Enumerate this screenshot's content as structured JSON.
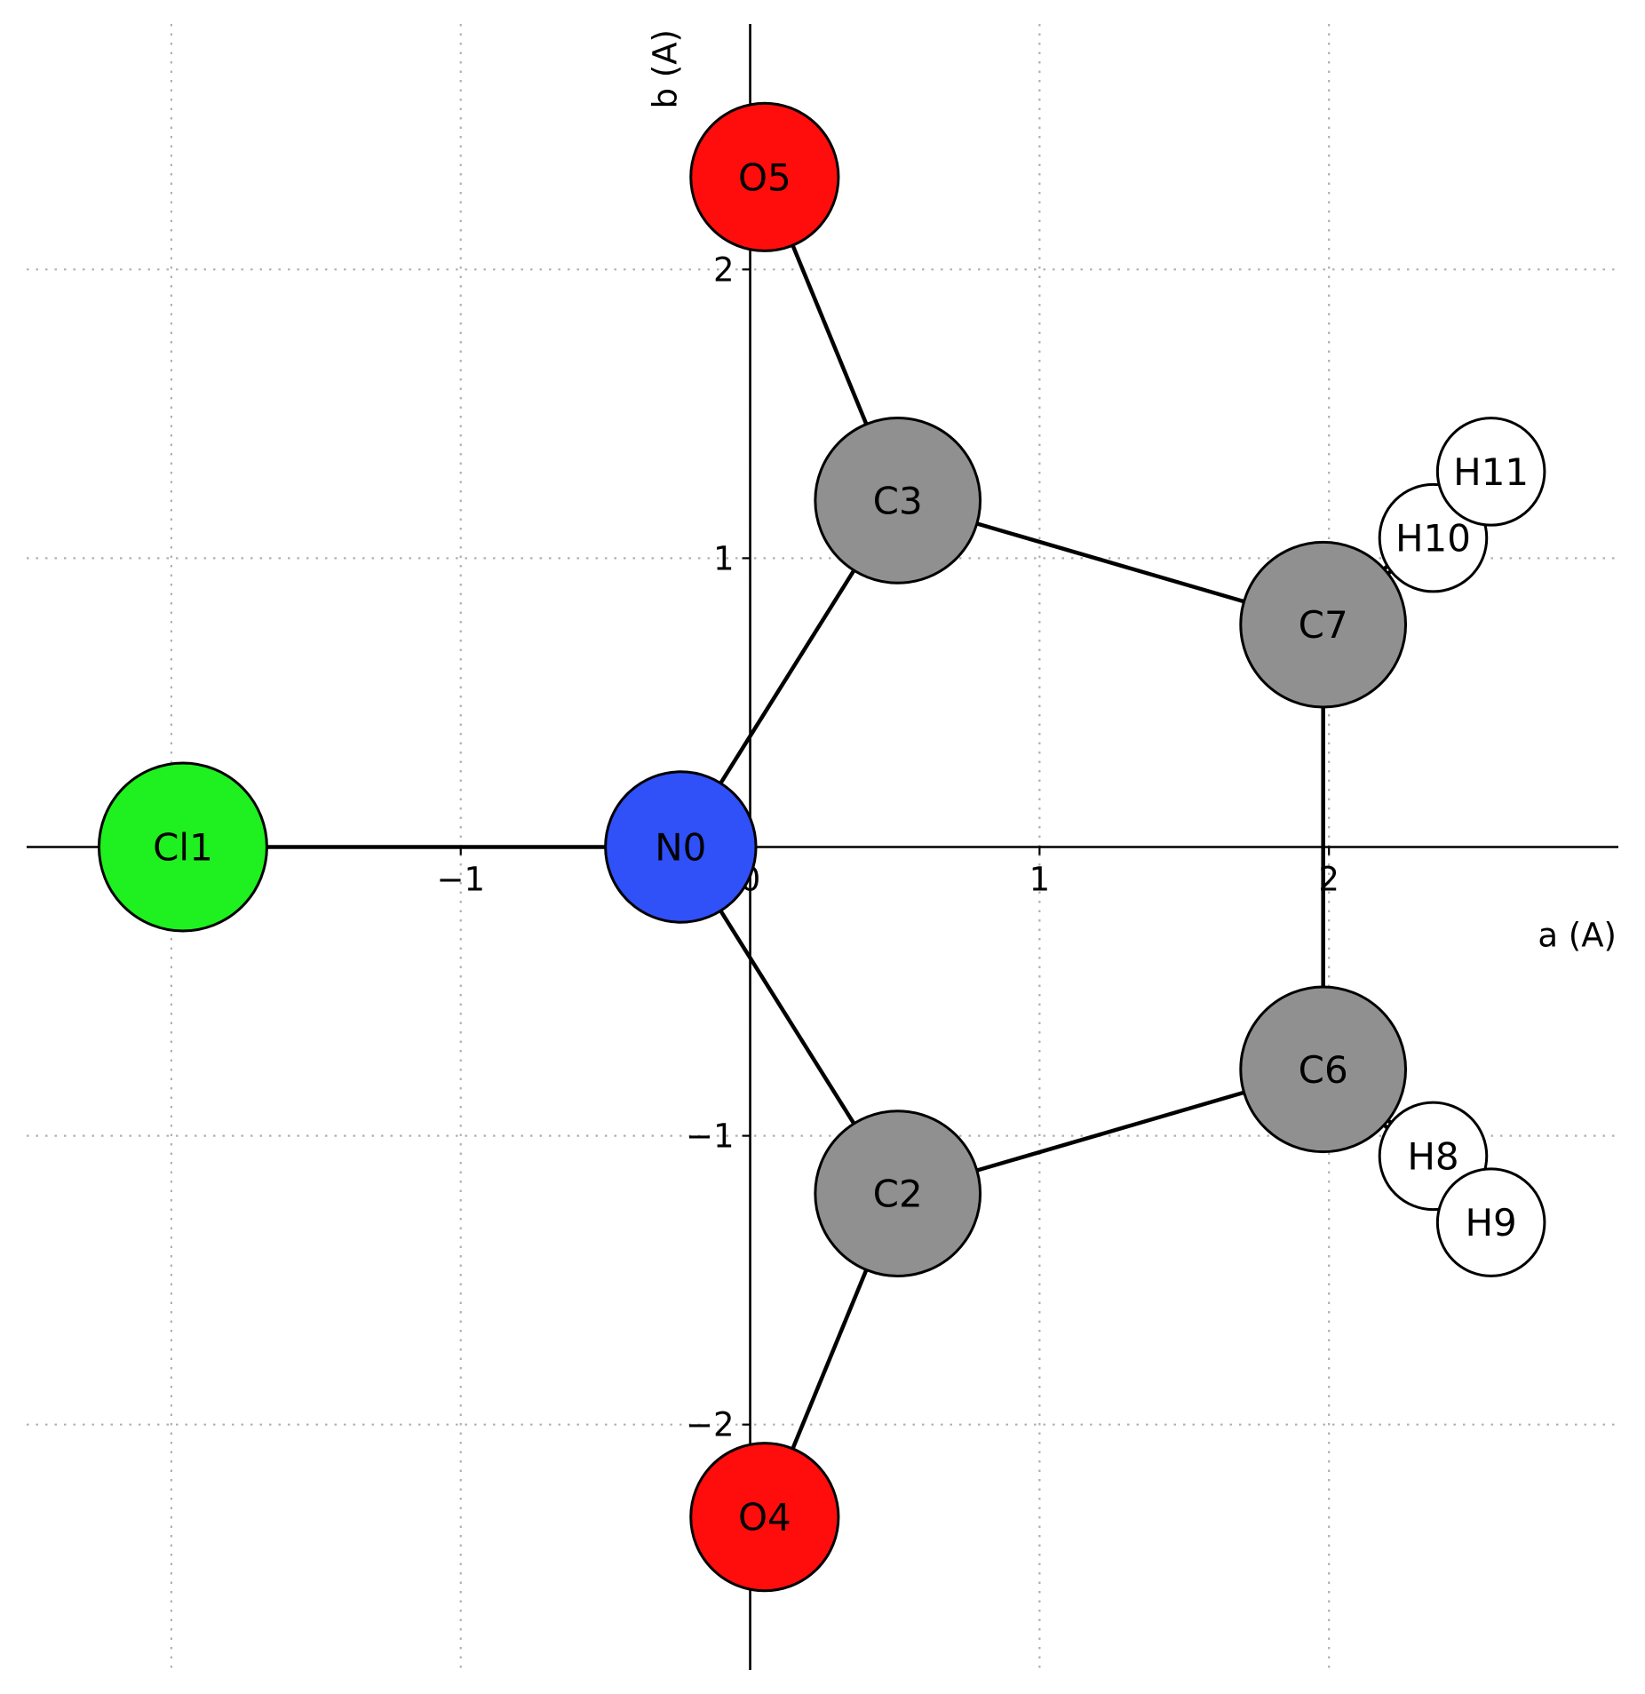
{
  "chart_data": {
    "type": "scatter",
    "title": "",
    "xlabel": "a (A)",
    "ylabel": "b (A)",
    "xlim": [
      -2.5,
      3.0
    ],
    "ylim": [
      -2.85,
      2.85
    ],
    "grid": true,
    "spines": "centered",
    "xticks": [
      {
        "value": -1,
        "label": "−1"
      },
      {
        "value": 0,
        "label": "0"
      },
      {
        "value": 1,
        "label": "1"
      },
      {
        "value": 2,
        "label": "2"
      }
    ],
    "yticks": [
      {
        "value": -2,
        "label": "−2"
      },
      {
        "value": -1,
        "label": "−1"
      },
      {
        "value": 1,
        "label": "1"
      },
      {
        "value": 2,
        "label": "2"
      }
    ],
    "atoms": [
      {
        "label": "N0",
        "element": "N",
        "x": -0.24,
        "y": 0.0,
        "color": "#3050f8",
        "radius": 0.26
      },
      {
        "label": "Cl1",
        "element": "Cl",
        "x": -1.96,
        "y": 0.0,
        "color": "#1ff01f",
        "radius": 0.29
      },
      {
        "label": "C2",
        "element": "C",
        "x": 0.51,
        "y": -1.2,
        "color": "#909090",
        "radius": 0.285
      },
      {
        "label": "C3",
        "element": "C",
        "x": 0.51,
        "y": 1.2,
        "color": "#909090",
        "radius": 0.285
      },
      {
        "label": "O4",
        "element": "O",
        "x": 0.05,
        "y": -2.32,
        "color": "#ff0d0d",
        "radius": 0.255
      },
      {
        "label": "O5",
        "element": "O",
        "x": 0.05,
        "y": 2.32,
        "color": "#ff0d0d",
        "radius": 0.255
      },
      {
        "label": "C6",
        "element": "C",
        "x": 1.98,
        "y": -0.77,
        "color": "#909090",
        "radius": 0.285
      },
      {
        "label": "C7",
        "element": "C",
        "x": 1.98,
        "y": 0.77,
        "color": "#909090",
        "radius": 0.285
      },
      {
        "label": "H8",
        "element": "H",
        "x": 2.36,
        "y": -1.07,
        "color": "#ffffff",
        "radius": 0.185
      },
      {
        "label": "H9",
        "element": "H",
        "x": 2.56,
        "y": -1.3,
        "color": "#ffffff",
        "radius": 0.185
      },
      {
        "label": "H10",
        "element": "H",
        "x": 2.36,
        "y": 1.07,
        "color": "#ffffff",
        "radius": 0.185
      },
      {
        "label": "H11",
        "element": "H",
        "x": 2.56,
        "y": 1.3,
        "color": "#ffffff",
        "radius": 0.185
      }
    ],
    "bonds": [
      [
        "N0",
        "Cl1"
      ],
      [
        "N0",
        "C2"
      ],
      [
        "N0",
        "C3"
      ],
      [
        "C2",
        "O4"
      ],
      [
        "C3",
        "O5"
      ],
      [
        "C2",
        "C6"
      ],
      [
        "C3",
        "C7"
      ],
      [
        "C6",
        "C7"
      ],
      [
        "C6",
        "H8"
      ],
      [
        "C6",
        "H9"
      ],
      [
        "C7",
        "H10"
      ],
      [
        "C7",
        "H11"
      ]
    ]
  }
}
